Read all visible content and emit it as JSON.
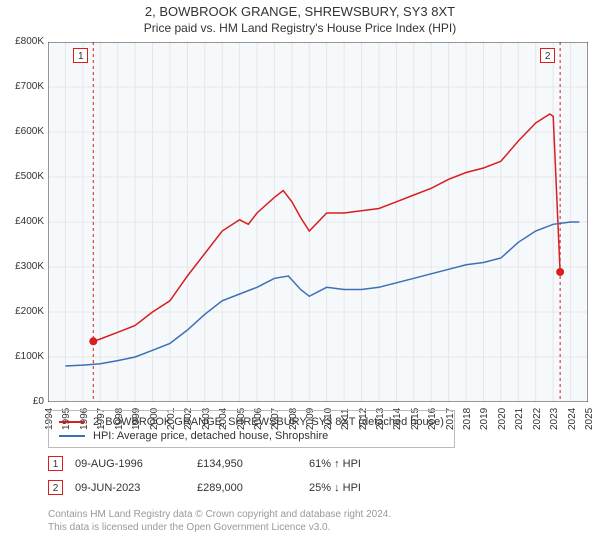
{
  "title": "2, BOWBROOK GRANGE, SHREWSBURY, SY3 8XT",
  "subtitle": "Price paid vs. HM Land Registry's House Price Index (HPI)",
  "chart": {
    "type": "line",
    "background_color": "#ffffff",
    "plot_panel_color": "#f6f9fc",
    "grid_color": "#e6e6e6",
    "axis_font_size": 10,
    "ylim": [
      0,
      800000
    ],
    "ytick_step": 100000,
    "yticks_labels": [
      "£0",
      "£100K",
      "£200K",
      "£300K",
      "£400K",
      "£500K",
      "£600K",
      "£700K",
      "£800K"
    ],
    "xlim": [
      1994,
      2025
    ],
    "xtick_step": 1,
    "xticks_labels": [
      "1994",
      "1995",
      "1996",
      "1997",
      "1998",
      "1999",
      "2000",
      "2001",
      "2002",
      "2003",
      "2004",
      "2005",
      "2006",
      "2007",
      "2008",
      "2009",
      "2010",
      "2011",
      "2012",
      "2013",
      "2014",
      "2015",
      "2016",
      "2017",
      "2018",
      "2019",
      "2020",
      "2021",
      "2022",
      "2023",
      "2024",
      "2025"
    ],
    "series": [
      {
        "name": "price_paid",
        "label": "2, BOWBROOK GRANGE, SHREWSBURY, SY3 8XT (detached house)",
        "color": "#d81e1e",
        "line_width": 1.5,
        "points": [
          [
            1996.6,
            134950
          ],
          [
            1997.0,
            140000
          ],
          [
            1998.0,
            155000
          ],
          [
            1999.0,
            170000
          ],
          [
            2000.0,
            200000
          ],
          [
            2001.0,
            225000
          ],
          [
            2002.0,
            280000
          ],
          [
            2003.0,
            330000
          ],
          [
            2004.0,
            380000
          ],
          [
            2005.0,
            405000
          ],
          [
            2005.5,
            395000
          ],
          [
            2006.0,
            420000
          ],
          [
            2007.0,
            455000
          ],
          [
            2007.5,
            470000
          ],
          [
            2008.0,
            445000
          ],
          [
            2008.5,
            410000
          ],
          [
            2009.0,
            380000
          ],
          [
            2010.0,
            420000
          ],
          [
            2011.0,
            420000
          ],
          [
            2012.0,
            425000
          ],
          [
            2013.0,
            430000
          ],
          [
            2014.0,
            445000
          ],
          [
            2015.0,
            460000
          ],
          [
            2016.0,
            475000
          ],
          [
            2017.0,
            495000
          ],
          [
            2018.0,
            510000
          ],
          [
            2019.0,
            520000
          ],
          [
            2020.0,
            535000
          ],
          [
            2021.0,
            580000
          ],
          [
            2022.0,
            620000
          ],
          [
            2022.8,
            640000
          ],
          [
            2023.0,
            635000
          ],
          [
            2023.4,
            289000
          ]
        ]
      },
      {
        "name": "hpi",
        "label": "HPI: Average price, detached house, Shropshire",
        "color": "#3d6fb5",
        "line_width": 1.5,
        "points": [
          [
            1995.0,
            80000
          ],
          [
            1996.0,
            82000
          ],
          [
            1997.0,
            85000
          ],
          [
            1998.0,
            92000
          ],
          [
            1999.0,
            100000
          ],
          [
            2000.0,
            115000
          ],
          [
            2001.0,
            130000
          ],
          [
            2002.0,
            160000
          ],
          [
            2003.0,
            195000
          ],
          [
            2004.0,
            225000
          ],
          [
            2005.0,
            240000
          ],
          [
            2006.0,
            255000
          ],
          [
            2007.0,
            275000
          ],
          [
            2007.8,
            280000
          ],
          [
            2008.5,
            250000
          ],
          [
            2009.0,
            235000
          ],
          [
            2010.0,
            255000
          ],
          [
            2011.0,
            250000
          ],
          [
            2012.0,
            250000
          ],
          [
            2013.0,
            255000
          ],
          [
            2014.0,
            265000
          ],
          [
            2015.0,
            275000
          ],
          [
            2016.0,
            285000
          ],
          [
            2017.0,
            295000
          ],
          [
            2018.0,
            305000
          ],
          [
            2019.0,
            310000
          ],
          [
            2020.0,
            320000
          ],
          [
            2021.0,
            355000
          ],
          [
            2022.0,
            380000
          ],
          [
            2023.0,
            395000
          ],
          [
            2024.0,
            400000
          ],
          [
            2024.5,
            400000
          ]
        ]
      }
    ],
    "sale_markers": [
      {
        "idx": "1",
        "x": 1996.6,
        "y": 134950,
        "vline_color": "#d81e1e"
      },
      {
        "idx": "2",
        "x": 2023.4,
        "y": 289000,
        "vline_color": "#d81e1e"
      }
    ]
  },
  "legend": {
    "items": [
      {
        "color": "#d81e1e",
        "label": "2, BOWBROOK GRANGE, SHREWSBURY, SY3 8XT (detached house)"
      },
      {
        "color": "#3d6fb5",
        "label": "HPI: Average price, detached house, Shropshire"
      }
    ]
  },
  "marker_table": [
    {
      "badge": "1",
      "badge_color": "#d81e1e",
      "date": "09-AUG-1996",
      "price": "£134,950",
      "pct": "61% ↑ HPI"
    },
    {
      "badge": "2",
      "badge_color": "#d81e1e",
      "date": "09-JUN-2023",
      "price": "£289,000",
      "pct": "25% ↓ HPI"
    }
  ],
  "footer": {
    "line1": "Contains HM Land Registry data © Crown copyright and database right 2024.",
    "line2": "This data is licensed under the Open Government Licence v3.0."
  }
}
